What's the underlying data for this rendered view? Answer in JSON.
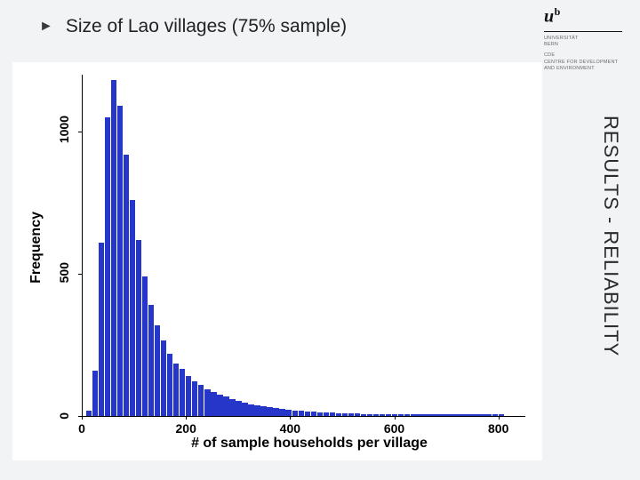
{
  "title": "Size of Lao villages (75% sample)",
  "sidebar_text": "RESULTS - RELIABILITY",
  "logo": {
    "main": "u",
    "sup": "b",
    "sub1": "UNIVERSITÄT",
    "sub2": "BERN",
    "sub3": "CDE",
    "sub4": "CENTRE FOR DEVELOPMENT",
    "sub5": "AND ENVIRONMENT"
  },
  "chart": {
    "type": "histogram",
    "xlabel": "# of sample households per village",
    "ylabel": "Frequency",
    "xlim": [
      0,
      850
    ],
    "ylim": [
      0,
      1200
    ],
    "xticks": [
      0,
      200,
      400,
      600,
      800
    ],
    "yticks": [
      0,
      500,
      1000
    ],
    "bin_width": 12,
    "bin_start": 6,
    "bar_color": "#2536c9",
    "background_color": "#ffffff",
    "axis_color": "#000000",
    "tick_fontsize": 14,
    "label_fontsize": 16,
    "label_fontweight": "bold",
    "values": [
      20,
      160,
      610,
      1050,
      1180,
      1090,
      920,
      760,
      620,
      490,
      390,
      320,
      265,
      220,
      185,
      165,
      140,
      122,
      108,
      95,
      85,
      76,
      68,
      60,
      54,
      48,
      42,
      38,
      34,
      30,
      28,
      25,
      22,
      20,
      18,
      16,
      15,
      13,
      12,
      11,
      10,
      9,
      8,
      8,
      7,
      6,
      6,
      5,
      5,
      5,
      4,
      4,
      4,
      3,
      3,
      3,
      3,
      2,
      2,
      2,
      2,
      2,
      2,
      1,
      1,
      1,
      1
    ]
  }
}
